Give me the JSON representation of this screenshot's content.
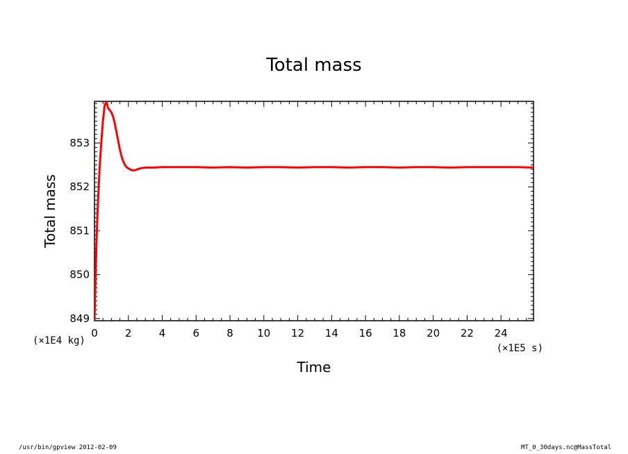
{
  "chart_data": {
    "type": "line",
    "title": "Total mass",
    "xlabel": "Time",
    "ylabel": "Total mass",
    "x_unit": "(×1E5 s)",
    "y_unit": "(×1E4 kg)",
    "xlim": [
      0,
      25.92
    ],
    "ylim": [
      848.95,
      853.95
    ],
    "xticks": [
      0,
      2,
      4,
      6,
      8,
      10,
      12,
      14,
      16,
      18,
      20,
      22,
      24
    ],
    "yticks": [
      849,
      850,
      851,
      852,
      853
    ],
    "grid": false,
    "line_color": "#ff0000",
    "series": [
      {
        "x": [
          0,
          0.05,
          0.1,
          0.15,
          0.2,
          0.3,
          0.4,
          0.5,
          0.6,
          0.7,
          0.8,
          0.9,
          1.0,
          1.1,
          1.2,
          1.3,
          1.4,
          1.5,
          1.6,
          1.7,
          1.8,
          1.9,
          2.0,
          2.2,
          2.4,
          2.6,
          2.8,
          3.0,
          3.5,
          4,
          5,
          6,
          7,
          8,
          9,
          10,
          11,
          12,
          13,
          14,
          15,
          16,
          17,
          18,
          19,
          20,
          21,
          22,
          23,
          24,
          25,
          25.92
        ],
        "y": [
          848.95,
          849.7,
          850.5,
          851.1,
          851.6,
          852.4,
          853.0,
          853.5,
          853.85,
          853.95,
          853.8,
          853.75,
          853.7,
          853.6,
          853.45,
          853.25,
          853.05,
          852.85,
          852.7,
          852.58,
          852.5,
          852.45,
          852.42,
          852.38,
          852.38,
          852.41,
          852.43,
          852.44,
          852.44,
          852.45,
          852.45,
          852.45,
          852.44,
          852.45,
          852.44,
          852.45,
          852.45,
          852.44,
          852.45,
          852.45,
          852.44,
          852.45,
          852.45,
          852.44,
          852.45,
          852.45,
          852.44,
          852.45,
          852.45,
          852.45,
          852.45,
          852.44
        ]
      }
    ]
  },
  "footer": {
    "left": "/usr/bin/gpview  2012-02-09",
    "right": "MT_0_30days.nc@MassTotal"
  }
}
